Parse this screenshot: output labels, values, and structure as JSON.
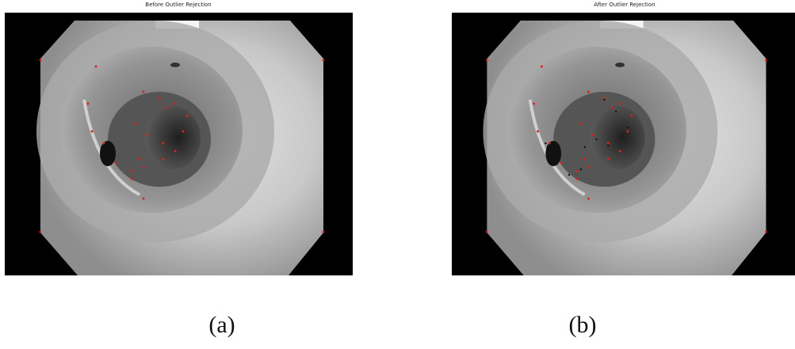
{
  "figure": {
    "panels": [
      {
        "title": "Before Outlier Rejection",
        "caption": "(a)"
      },
      {
        "title": "After Outlier Rejection",
        "caption": "(b)"
      }
    ]
  }
}
